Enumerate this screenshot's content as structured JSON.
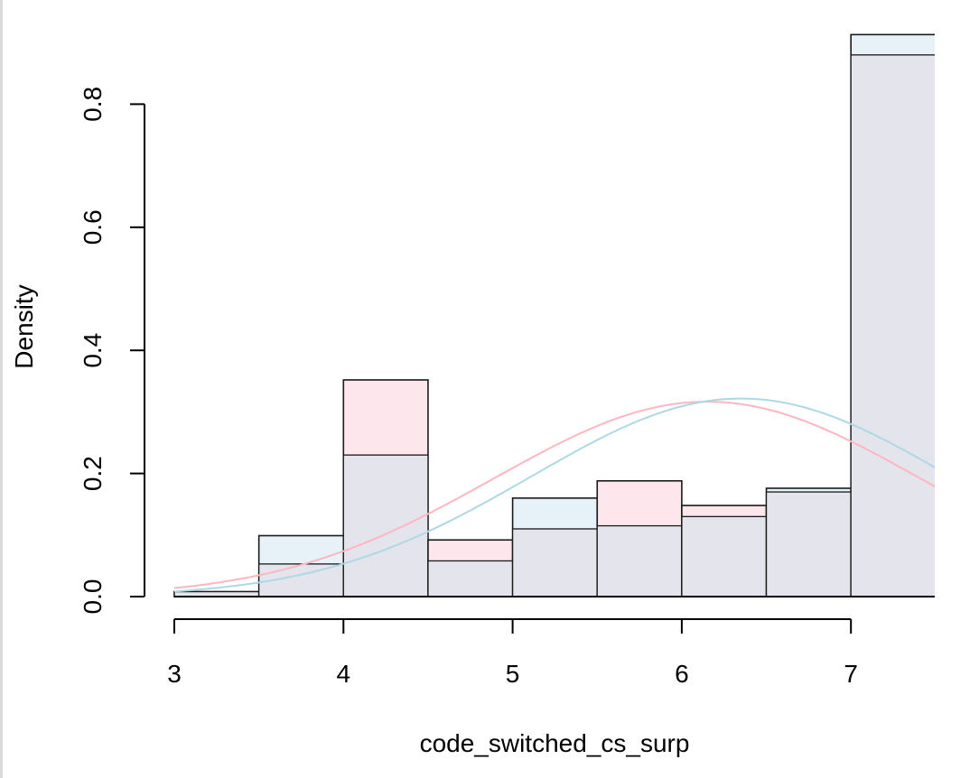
{
  "chart_data": {
    "type": "bar",
    "subtype": "overlaid-density-histogram",
    "xlabel": "code_switched_cs_surp",
    "ylabel": "Density",
    "xlim": [
      3,
      7.5
    ],
    "ylim": [
      0,
      0.9
    ],
    "x_ticks": [
      "3",
      "4",
      "5",
      "6",
      "7"
    ],
    "y_ticks": [
      "0.0",
      "0.2",
      "0.4",
      "0.6",
      "0.8"
    ],
    "bin_edges": [
      3.0,
      3.5,
      4.0,
      4.5,
      5.0,
      5.5,
      6.0,
      6.5,
      7.0,
      7.5
    ],
    "series": [
      {
        "color": "#ffb6c1",
        "values": [
          0.008,
          0.053,
          0.352,
          0.092,
          0.11,
          0.188,
          0.148,
          0.17,
          0.88
        ],
        "normal_fit": {
          "mean": 6.15,
          "sd": 1.26
        }
      },
      {
        "color": "#add8e6",
        "values": [
          0.008,
          0.099,
          0.23,
          0.058,
          0.16,
          0.115,
          0.13,
          0.176,
          0.913
        ],
        "normal_fit": {
          "mean": 6.35,
          "sd": 1.24
        }
      }
    ],
    "overlap_color": "#e4e4ec",
    "grid": false
  }
}
